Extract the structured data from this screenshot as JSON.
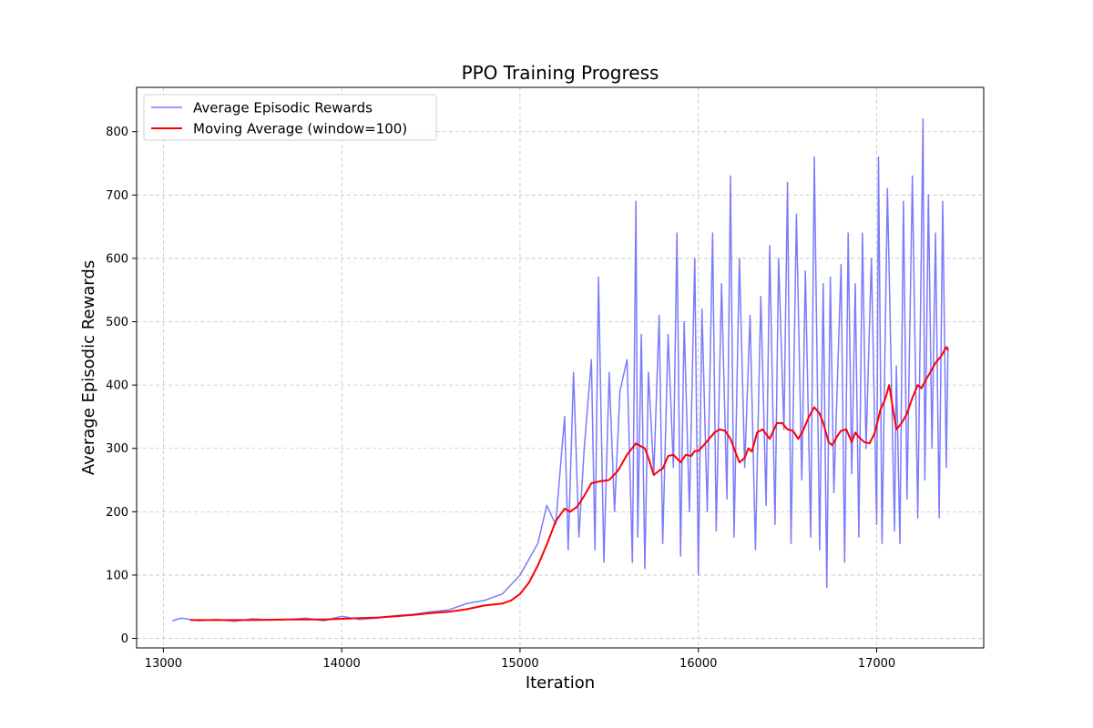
{
  "chart_data": {
    "type": "line",
    "title": "PPO Training Progress",
    "xlabel": "Iteration",
    "ylabel": "Average Episodic Rewards",
    "xlim": [
      12850,
      17600
    ],
    "ylim": [
      -15,
      870
    ],
    "xticks": [
      13000,
      14000,
      15000,
      16000,
      17000
    ],
    "yticks": [
      0,
      100,
      200,
      300,
      400,
      500,
      600,
      700,
      800
    ],
    "grid": true,
    "legend_position": "top-left",
    "series": [
      {
        "name": "Average Episodic Rewards",
        "color": "#7b7bfb",
        "x": [
          13050,
          13100,
          13200,
          13300,
          13400,
          13500,
          13600,
          13700,
          13800,
          13900,
          14000,
          14100,
          14200,
          14300,
          14400,
          14500,
          14600,
          14700,
          14800,
          14900,
          14950,
          15000,
          15050,
          15100,
          15150,
          15200,
          15250,
          15270,
          15300,
          15330,
          15360,
          15400,
          15420,
          15440,
          15470,
          15500,
          15530,
          15560,
          15600,
          15630,
          15650,
          15660,
          15680,
          15700,
          15720,
          15750,
          15780,
          15800,
          15830,
          15860,
          15880,
          15900,
          15920,
          15950,
          15980,
          16000,
          16020,
          16050,
          16080,
          16100,
          16130,
          16160,
          16180,
          16200,
          16230,
          16260,
          16290,
          16320,
          16350,
          16380,
          16400,
          16430,
          16450,
          16480,
          16500,
          16520,
          16550,
          16580,
          16600,
          16630,
          16650,
          16680,
          16700,
          16720,
          16740,
          16760,
          16800,
          16820,
          16840,
          16860,
          16880,
          16900,
          16920,
          16940,
          16970,
          17000,
          17010,
          17030,
          17060,
          17100,
          17110,
          17130,
          17150,
          17170,
          17200,
          17230,
          17260,
          17270,
          17290,
          17310,
          17330,
          17350,
          17370,
          17390,
          17400
        ],
        "y": [
          28,
          32,
          28,
          30,
          27,
          31,
          29,
          30,
          32,
          28,
          35,
          30,
          32,
          36,
          38,
          42,
          45,
          55,
          60,
          70,
          85,
          100,
          125,
          150,
          210,
          180,
          350,
          140,
          420,
          160,
          300,
          440,
          140,
          570,
          120,
          420,
          200,
          390,
          440,
          120,
          690,
          160,
          480,
          110,
          420,
          260,
          510,
          150,
          480,
          270,
          640,
          130,
          500,
          200,
          600,
          100,
          520,
          200,
          640,
          170,
          560,
          220,
          730,
          160,
          600,
          270,
          510,
          140,
          540,
          210,
          620,
          180,
          600,
          330,
          720,
          150,
          670,
          250,
          580,
          160,
          760,
          140,
          560,
          80,
          570,
          230,
          590,
          120,
          640,
          260,
          560,
          160,
          640,
          300,
          600,
          180,
          760,
          150,
          710,
          170,
          430,
          150,
          690,
          220,
          730,
          190,
          820,
          250,
          700,
          300,
          640,
          190,
          690,
          270,
          460
        ],
        "line_width": 1.5
      },
      {
        "name": "Moving Average (window=100)",
        "color": "#ff0000",
        "x": [
          13150,
          13300,
          13500,
          13700,
          13900,
          14000,
          14100,
          14200,
          14300,
          14400,
          14500,
          14600,
          14700,
          14800,
          14900,
          14950,
          15000,
          15050,
          15100,
          15150,
          15200,
          15250,
          15280,
          15320,
          15360,
          15400,
          15450,
          15500,
          15550,
          15600,
          15650,
          15700,
          15720,
          15750,
          15780,
          15800,
          15830,
          15860,
          15900,
          15930,
          15960,
          15980,
          16000,
          16030,
          16060,
          16090,
          16120,
          16150,
          16180,
          16200,
          16230,
          16260,
          16280,
          16300,
          16330,
          16360,
          16400,
          16440,
          16470,
          16500,
          16530,
          16560,
          16590,
          16620,
          16650,
          16680,
          16700,
          16730,
          16750,
          16780,
          16800,
          16830,
          16860,
          16880,
          16900,
          16930,
          16960,
          16990,
          17020,
          17050,
          17070,
          17090,
          17110,
          17140,
          17170,
          17200,
          17230,
          17250,
          17280,
          17300,
          17330,
          17360,
          17390,
          17400
        ],
        "y": [
          29,
          29,
          29,
          30,
          30,
          31,
          32,
          33,
          35,
          37,
          40,
          42,
          46,
          52,
          55,
          60,
          70,
          88,
          115,
          148,
          185,
          205,
          200,
          208,
          225,
          245,
          248,
          250,
          265,
          290,
          308,
          300,
          285,
          258,
          265,
          268,
          288,
          290,
          278,
          290,
          288,
          296,
          296,
          305,
          315,
          325,
          330,
          328,
          315,
          300,
          278,
          285,
          300,
          295,
          325,
          330,
          315,
          340,
          340,
          330,
          328,
          315,
          330,
          350,
          365,
          355,
          340,
          310,
          305,
          320,
          328,
          330,
          310,
          325,
          318,
          310,
          308,
          325,
          360,
          380,
          400,
          365,
          330,
          340,
          355,
          380,
          400,
          395,
          410,
          420,
          435,
          445,
          460,
          455
        ],
        "line_width": 2
      }
    ]
  }
}
